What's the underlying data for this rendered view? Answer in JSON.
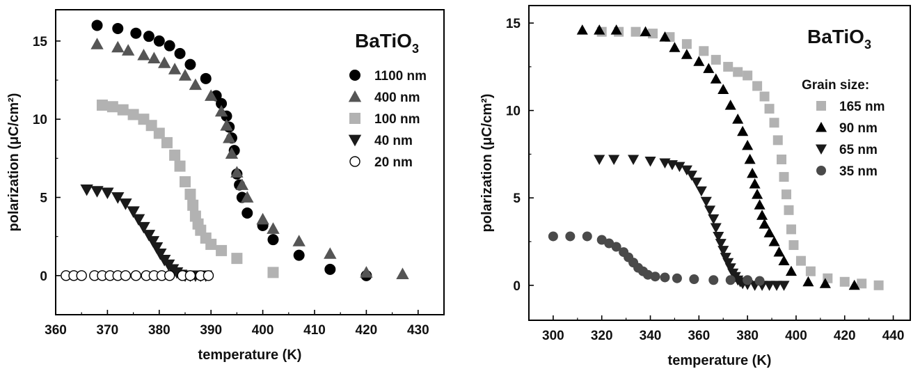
{
  "chart_data": [
    {
      "type": "scatter",
      "title": "BaTiO",
      "title_subscript": "3",
      "xlabel": "temperature (K)",
      "ylabel": "polarization (μC/cm²)",
      "xlim": [
        360,
        435
      ],
      "ylim": [
        -2.5,
        17
      ],
      "xticks": [
        360,
        370,
        380,
        390,
        400,
        410,
        420,
        430
      ],
      "yticks": [
        0,
        5,
        10,
        15
      ],
      "legend_title": "",
      "legend_position": "top-right",
      "series": [
        {
          "name": "1100 nm",
          "marker": "circle",
          "color": "#000000",
          "x": [
            368,
            372,
            375.5,
            378,
            380,
            382,
            384,
            386,
            389,
            391,
            392,
            393,
            393.5,
            394,
            394.5,
            395,
            395.5,
            396,
            397,
            400,
            402,
            407,
            413,
            420
          ],
          "y": [
            16.0,
            15.8,
            15.5,
            15.3,
            15.0,
            14.7,
            14.2,
            13.5,
            12.6,
            11.5,
            11.0,
            10.2,
            9.5,
            8.8,
            8.0,
            6.5,
            5.8,
            5.0,
            4.0,
            3.2,
            2.3,
            1.3,
            0.4,
            0.0
          ]
        },
        {
          "name": "400 nm",
          "marker": "triangle-up",
          "color": "#555555",
          "x": [
            368,
            372,
            374,
            377,
            379,
            381,
            383,
            385,
            387,
            390,
            392,
            393,
            393.5,
            394,
            395,
            396,
            397,
            400,
            402,
            407,
            413,
            420,
            427
          ],
          "y": [
            14.8,
            14.6,
            14.4,
            14.1,
            13.9,
            13.6,
            13.2,
            12.8,
            12.2,
            11.5,
            10.5,
            9.6,
            8.8,
            7.8,
            6.6,
            5.8,
            5.0,
            3.6,
            3.0,
            2.2,
            1.4,
            0.2,
            0.1
          ]
        },
        {
          "name": "100 nm",
          "marker": "square",
          "color": "#b2b2b2",
          "x": [
            369,
            371,
            373,
            375,
            377,
            378.5,
            380,
            381.5,
            383,
            384,
            385,
            386,
            386.5,
            387,
            387.5,
            388,
            389,
            390,
            392,
            395,
            402
          ],
          "y": [
            10.9,
            10.8,
            10.6,
            10.3,
            10.0,
            9.6,
            9.1,
            8.5,
            7.7,
            7.0,
            6.0,
            5.2,
            4.5,
            3.8,
            3.3,
            2.9,
            2.4,
            2.0,
            1.6,
            1.1,
            0.2
          ]
        },
        {
          "name": "40 nm",
          "marker": "triangle-down",
          "color": "#1a1a1a",
          "x": [
            366,
            368,
            370,
            372,
            373.5,
            375,
            376,
            377,
            378,
            378.8,
            379.5,
            380.2,
            381,
            381.8,
            382.6,
            383.4,
            384.2,
            385,
            386,
            387,
            388,
            389
          ],
          "y": [
            5.5,
            5.4,
            5.3,
            5.0,
            4.6,
            4.1,
            3.6,
            3.1,
            2.6,
            2.2,
            1.8,
            1.4,
            1.0,
            0.7,
            0.4,
            0.2,
            0.05,
            0.0,
            0.0,
            0.0,
            0.0,
            0.0
          ]
        },
        {
          "name": "20 nm",
          "marker": "circle-open",
          "color": "#000000",
          "x": [
            362,
            363.5,
            365,
            367.5,
            369,
            370.5,
            372,
            373.5,
            375.5,
            377.5,
            379,
            380.5,
            382,
            384.5,
            386,
            388,
            389.5
          ],
          "y": [
            0,
            0,
            0,
            0,
            0,
            0,
            0,
            0,
            0,
            0,
            0,
            0,
            0,
            0,
            0,
            0,
            0
          ]
        }
      ]
    },
    {
      "type": "scatter",
      "title": "BaTiO",
      "title_subscript": "3",
      "xlabel": "temperature (K)",
      "ylabel": "polarization (μC/cm²)",
      "xlim": [
        290,
        447
      ],
      "ylim": [
        -2,
        16
      ],
      "xticks": [
        300,
        320,
        340,
        360,
        380,
        400,
        420,
        440
      ],
      "yticks": [
        0,
        5,
        10,
        15
      ],
      "legend_title": "Grain size:",
      "legend_position": "right",
      "series": [
        {
          "name": "165 nm",
          "marker": "square",
          "color": "#b2b2b2",
          "x": [
            320,
            327,
            334,
            341,
            348,
            355,
            362,
            367,
            372,
            376,
            380,
            384,
            387,
            389,
            391,
            392.5,
            394,
            395,
            396,
            397,
            398,
            399,
            402,
            406,
            413,
            420,
            427,
            434
          ],
          "y": [
            14.5,
            14.5,
            14.5,
            14.4,
            14.2,
            13.8,
            13.4,
            12.9,
            12.5,
            12.2,
            12.0,
            11.4,
            10.8,
            10.1,
            9.3,
            8.3,
            7.2,
            6.2,
            5.2,
            4.3,
            3.2,
            2.3,
            1.4,
            0.8,
            0.4,
            0.2,
            0.1,
            0.0
          ]
        },
        {
          "name": "90 nm",
          "marker": "triangle-up",
          "color": "#000000",
          "x": [
            312,
            319,
            326,
            338,
            346,
            350,
            355,
            360,
            364,
            367,
            370,
            373,
            376,
            378,
            380,
            381,
            382,
            383,
            384,
            385,
            386,
            387,
            389,
            391,
            393,
            395,
            398,
            405,
            412,
            424
          ],
          "y": [
            14.6,
            14.6,
            14.6,
            14.5,
            14.2,
            13.6,
            13.2,
            12.8,
            12.4,
            11.8,
            11.2,
            10.3,
            9.5,
            8.8,
            8.0,
            7.2,
            6.4,
            5.8,
            5.2,
            4.6,
            4.0,
            3.5,
            3.0,
            2.5,
            1.9,
            1.4,
            0.8,
            0.2,
            0.1,
            0.0
          ]
        },
        {
          "name": "65 nm",
          "marker": "triangle-down",
          "color": "#1a1a1a",
          "x": [
            319,
            325,
            333,
            340,
            346,
            349,
            352,
            355,
            357,
            359,
            361,
            363,
            364.5,
            366,
            367,
            368,
            369,
            370,
            371,
            372,
            373,
            374,
            375,
            376,
            377,
            378,
            380,
            383,
            386,
            389,
            392,
            395
          ],
          "y": [
            7.2,
            7.2,
            7.2,
            7.1,
            7.0,
            6.9,
            6.8,
            6.6,
            6.3,
            5.9,
            5.4,
            4.8,
            4.3,
            3.8,
            3.3,
            2.8,
            2.4,
            2.0,
            1.6,
            1.3,
            1.0,
            0.7,
            0.5,
            0.3,
            0.2,
            0.1,
            0.05,
            0.0,
            0.0,
            0.0,
            0.0,
            0.0
          ]
        },
        {
          "name": "35 nm",
          "marker": "circle",
          "color": "#4a4a4a",
          "x": [
            300,
            307,
            314,
            320,
            323,
            326,
            329,
            331,
            333,
            335,
            337,
            339,
            342,
            346,
            351,
            358,
            366,
            373,
            380,
            385
          ],
          "y": [
            2.8,
            2.8,
            2.8,
            2.6,
            2.4,
            2.2,
            1.9,
            1.6,
            1.3,
            1.0,
            0.8,
            0.6,
            0.5,
            0.45,
            0.4,
            0.35,
            0.3,
            0.3,
            0.3,
            0.25
          ]
        }
      ]
    }
  ]
}
